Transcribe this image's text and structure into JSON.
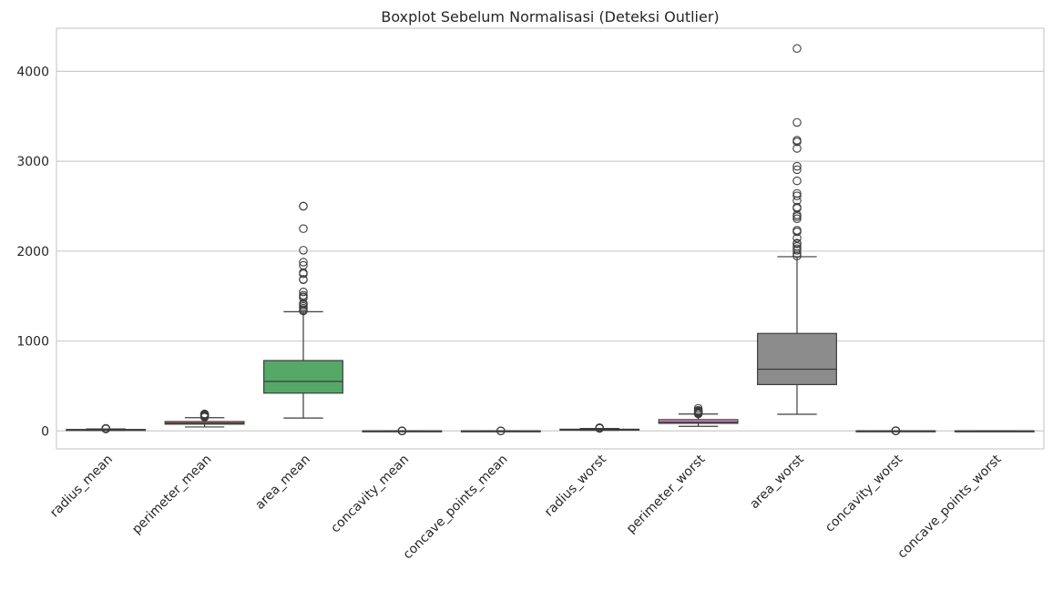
{
  "chart_data": {
    "type": "boxplot",
    "title": "Boxplot Sebelum Normalisasi (Deteksi Outlier)",
    "xlabel": "",
    "ylabel": "",
    "ylim": [
      -200,
      4480
    ],
    "yticks": [
      0,
      1000,
      2000,
      3000,
      4000
    ],
    "grid": "horizontal",
    "categories": [
      "radius_mean",
      "perimeter_mean",
      "area_mean",
      "concavity_mean",
      "concave_points_mean",
      "radius_worst",
      "perimeter_worst",
      "area_worst",
      "concavity_worst",
      "concave_points_worst"
    ],
    "boxes": [
      {
        "name": "radius_mean",
        "color": "#4c72b0",
        "whislo": 7,
        "q1": 11.7,
        "med": 13.4,
        "q3": 15.8,
        "whishi": 22,
        "fliers": [
          22.3,
          23.3,
          24.6,
          25.2,
          25.7,
          27.2,
          28.1
        ]
      },
      {
        "name": "perimeter_mean",
        "color": "#dd8452",
        "whislo": 43.8,
        "q1": 75.2,
        "med": 86.2,
        "q3": 104.1,
        "whishi": 147.3,
        "fliers": [
          152.8,
          158.9,
          165.5,
          171.5,
          174.2,
          182.1,
          186.9,
          188.5
        ]
      },
      {
        "name": "area_mean",
        "color": "#55a868",
        "whislo": 143.5,
        "q1": 420.3,
        "med": 551.1,
        "q3": 782.7,
        "whishi": 1326,
        "fliers": [
          1335,
          1347,
          1364,
          1384,
          1404,
          1419,
          1482,
          1491,
          1509,
          1546,
          1682,
          1686,
          1747,
          1761,
          1841,
          1878,
          2010,
          2250,
          2499,
          2501
        ]
      },
      {
        "name": "concavity_mean",
        "color": "#c44e52",
        "whislo": 0,
        "q1": 0.03,
        "med": 0.06,
        "q3": 0.13,
        "whishi": 0.28,
        "fliers": [
          0.3,
          0.32,
          0.35,
          0.38,
          0.43
        ]
      },
      {
        "name": "concave_points_mean",
        "color": "#8172b3",
        "whislo": 0,
        "q1": 0.02,
        "med": 0.03,
        "q3": 0.07,
        "whishi": 0.15,
        "fliers": [
          0.16,
          0.18,
          0.2
        ]
      },
      {
        "name": "radius_worst",
        "color": "#937860",
        "whislo": 7.9,
        "q1": 13.0,
        "med": 15.0,
        "q3": 18.8,
        "whishi": 27.5,
        "fliers": [
          28.1,
          29.2,
          30.7,
          31.0,
          32.5,
          33.1,
          36.0
        ]
      },
      {
        "name": "perimeter_worst",
        "color": "#da8bc3",
        "whislo": 50.4,
        "q1": 84.1,
        "med": 97.7,
        "q3": 125.4,
        "whishi": 187.3,
        "fliers": [
          188.0,
          195.9,
          199.5,
          206.8,
          211.7,
          220.8,
          229.3,
          251.2
        ]
      },
      {
        "name": "area_worst",
        "color": "#8c8c8c",
        "whislo": 185.2,
        "q1": 515.3,
        "med": 686.5,
        "q3": 1084,
        "whishi": 1938,
        "fliers": [
          1946,
          1972,
          2010,
          2027,
          2053,
          2081,
          2089,
          2145,
          2215,
          2232,
          2360,
          2384,
          2403,
          2477,
          2489,
          2562,
          2615,
          2642,
          2782,
          2906,
          2944,
          3143,
          3216,
          3234,
          3432,
          4254
        ]
      },
      {
        "name": "concavity_worst",
        "color": "#ccb974",
        "whislo": 0,
        "q1": 0.11,
        "med": 0.23,
        "q3": 0.38,
        "whishi": 0.79,
        "fliers": [
          0.8,
          0.9,
          1.05,
          1.17,
          1.25
        ]
      },
      {
        "name": "concave_points_worst",
        "color": "#64b5cd",
        "whislo": 0,
        "q1": 0.06,
        "med": 0.1,
        "q3": 0.16,
        "whishi": 0.29,
        "fliers": []
      }
    ]
  }
}
